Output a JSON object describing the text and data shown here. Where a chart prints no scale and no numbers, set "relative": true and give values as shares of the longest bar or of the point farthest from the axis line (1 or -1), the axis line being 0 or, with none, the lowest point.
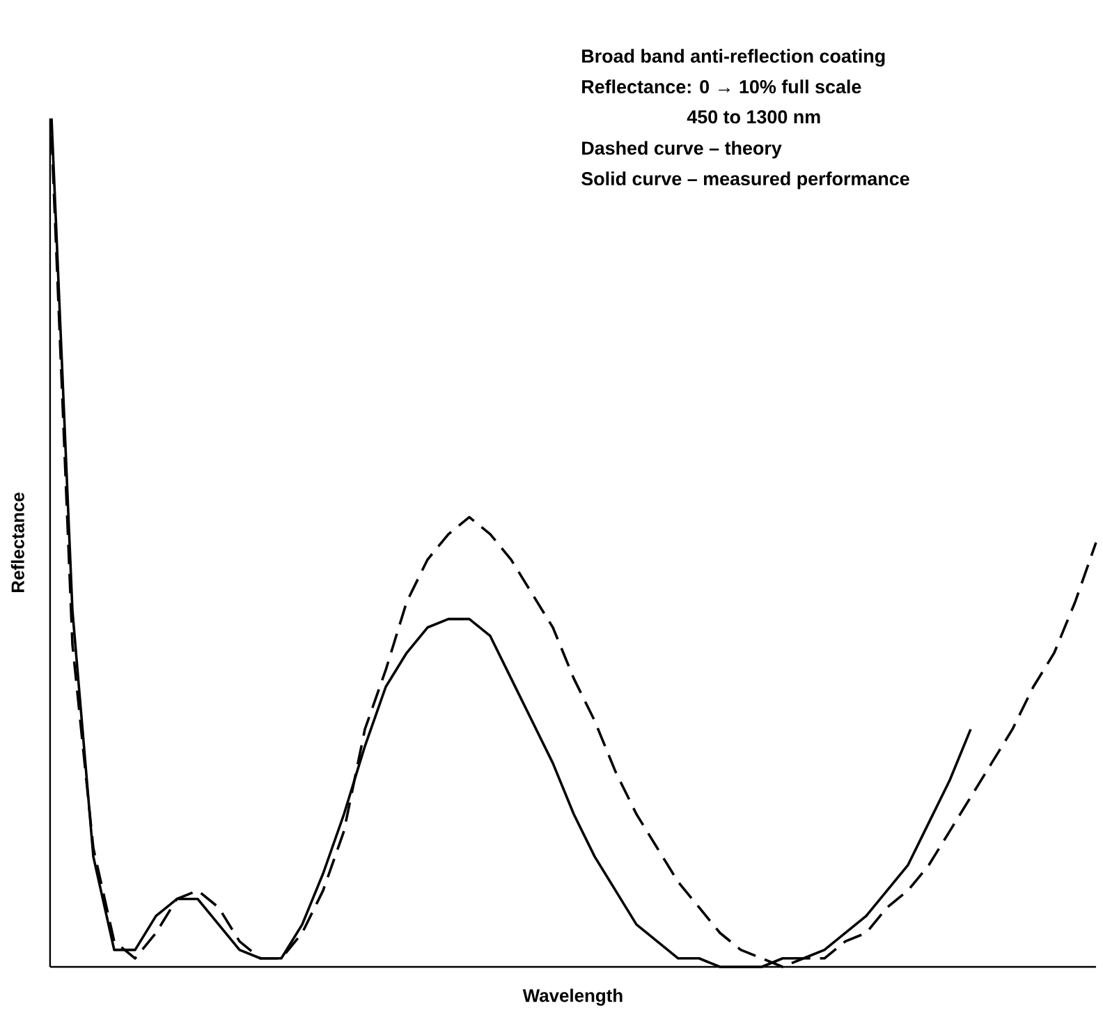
{
  "chart_data": {
    "type": "line",
    "relative": true,
    "xlabel": "Wavelength",
    "ylabel": "Reflectance",
    "annotations": [
      "Broad band anti-reflection coating",
      "Reflectance:  0 → 10% full scale",
      "450 to 1300 nm",
      "Dashed curve – theory",
      "Solid curve – measured performance"
    ],
    "categories": [
      null,
      null,
      null,
      null,
      null,
      null,
      null,
      null,
      null,
      null,
      null,
      null,
      null,
      null,
      null,
      null,
      null,
      null,
      null,
      null,
      null,
      null,
      null,
      null,
      null,
      null,
      null,
      null,
      null,
      null,
      null,
      null,
      null,
      null,
      null,
      null,
      null,
      null,
      null,
      null,
      null,
      null,
      null,
      null,
      null,
      null,
      null,
      null,
      null,
      null,
      null
    ],
    "series": [
      {
        "color": "#000000",
        "line_style": "dashed",
        "values": [
          0.98,
          0.38,
          0.14,
          0.03,
          0.01,
          0.04,
          0.08,
          0.09,
          0.07,
          0.03,
          0.01,
          0.01,
          0.04,
          0.09,
          0.16,
          0.28,
          0.35,
          0.43,
          0.48,
          0.51,
          0.53,
          0.51,
          0.48,
          0.44,
          0.4,
          0.34,
          0.29,
          0.23,
          0.18,
          0.14,
          0.1,
          0.07,
          0.04,
          0.02,
          0.01,
          0.0,
          0.01,
          0.01,
          0.03,
          0.04,
          0.07,
          0.09,
          0.12,
          0.16,
          0.2,
          0.24,
          0.28,
          0.33,
          0.37,
          0.43,
          0.5
        ]
      },
      {
        "color": "#000000",
        "line_style": "solid",
        "values": [
          1.0,
          0.42,
          0.13,
          0.02,
          0.02,
          0.06,
          0.08,
          0.08,
          0.05,
          0.02,
          0.01,
          0.01,
          0.05,
          0.11,
          0.18,
          0.26,
          0.33,
          0.37,
          0.4,
          0.41,
          0.41,
          0.39,
          0.34,
          0.29,
          0.24,
          0.18,
          0.13,
          0.09,
          0.05,
          0.03,
          0.01,
          0.01,
          0.0,
          0.0,
          0,
          0.01,
          0.01,
          0.02,
          0.04,
          0.06,
          0.09,
          0.12,
          0.17,
          0.22,
          0.28,
          null,
          null,
          null,
          null,
          null,
          null
        ]
      }
    ]
  }
}
